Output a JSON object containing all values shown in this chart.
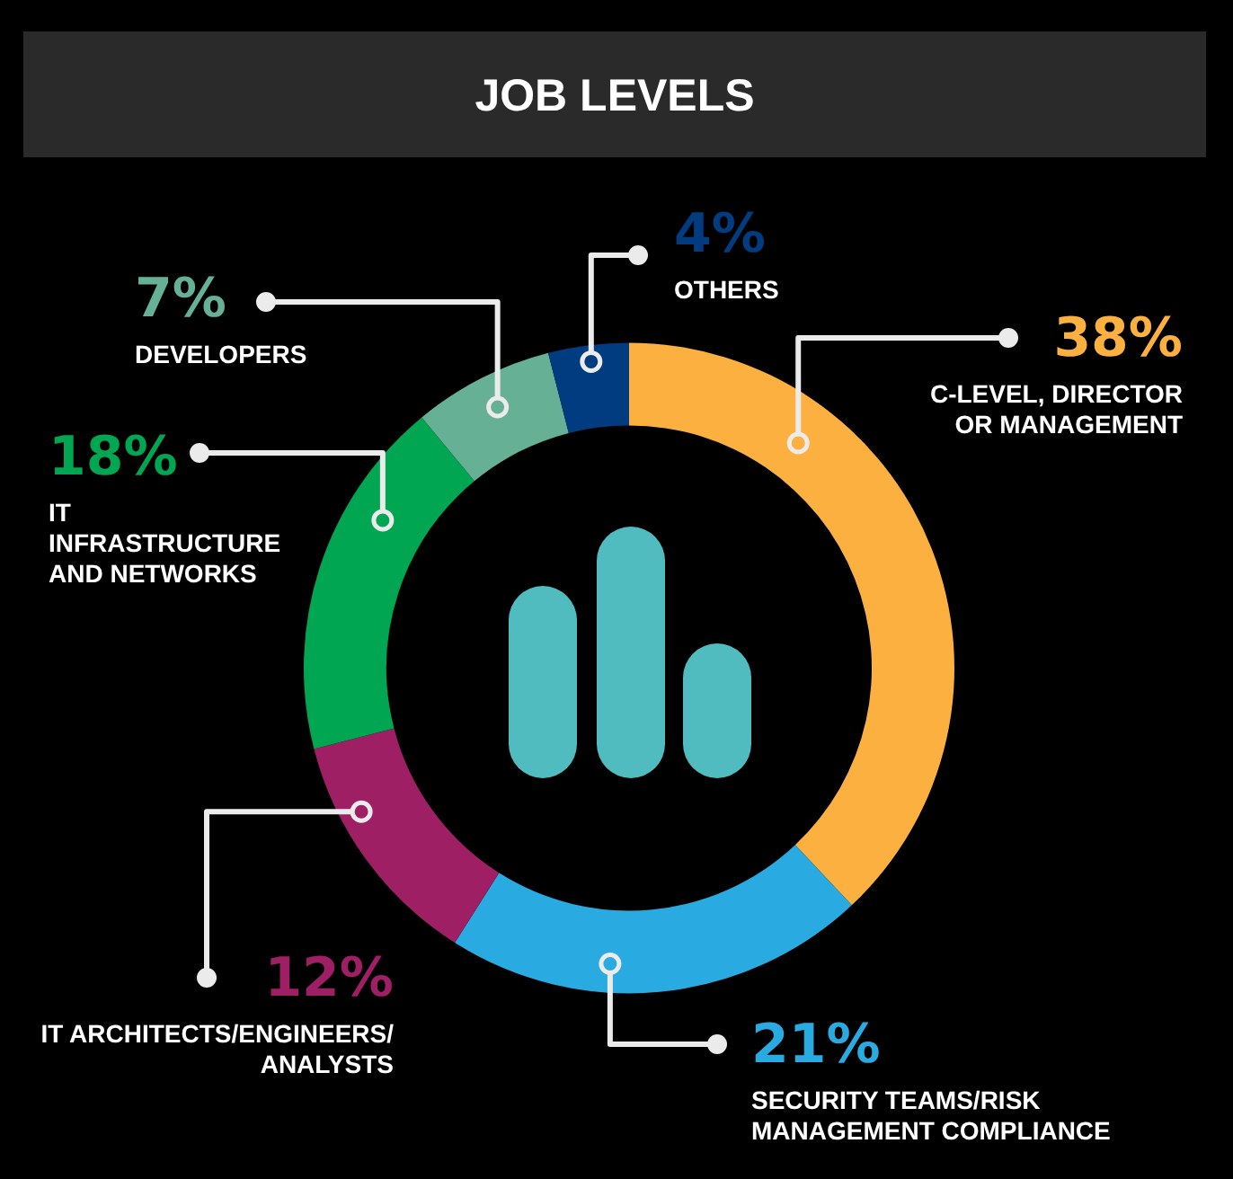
{
  "chart_data": {
    "type": "donut",
    "title": "JOB LEVELS",
    "categories": [
      "C-LEVEL, DIRECTOR OR MANAGEMENT",
      "SECURITY TEAMS/RISK MANAGEMENT COMPLIANCE",
      "IT ARCHITECTS/ENGINEERS/ANALYSTS",
      "IT INFRASTRUCTURE AND NETWORKS",
      "DEVELOPERS",
      "OTHERS"
    ],
    "values": [
      38,
      21,
      12,
      18,
      7,
      4
    ],
    "value_labels": [
      "38%",
      "21%",
      "12%",
      "18%",
      "7%",
      "4%"
    ],
    "colors": [
      "#fbb040",
      "#29aae1",
      "#9e1f63",
      "#00a651",
      "#66b095",
      "#003c7f"
    ]
  }
}
